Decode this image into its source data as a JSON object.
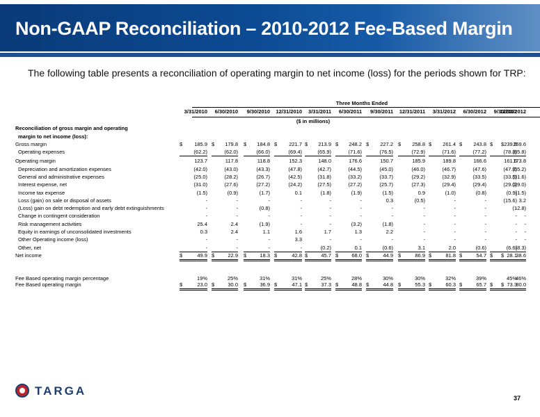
{
  "title": "Non-GAAP Reconciliation – 2010-2012 Fee-Based Margin",
  "subtitle": "The following table presents a reconciliation of operating margin to net income (loss) for the periods shown for TRP:",
  "table": {
    "group_header": "Three Months Ended",
    "units": "($ in millions)",
    "columns": [
      "3/31/2010",
      "6/30/2010",
      "9/30/2010",
      "12/31/2010",
      "3/31/2011",
      "6/30/2011",
      "9/30/2011",
      "12/31/2011",
      "3/31/2012",
      "6/30/2012",
      "9/30/2012",
      "12/31/2012"
    ],
    "section_heading_1": "Reconciliation of gross margin and operating",
    "section_heading_2": "margin to net income (loss):",
    "rows": [
      {
        "label": "Gross margin",
        "values": [
          "185.9",
          "179.8",
          "184.8",
          "221.7",
          "213.9",
          "248.2",
          "227.2",
          "258.8",
          "261.4",
          "243.8",
          "239.9",
          "259.6"
        ],
        "dollar": true
      },
      {
        "label": "Operating expenses",
        "values": [
          "(62.2)",
          "(62.0)",
          "(66.0)",
          "(69.4)",
          "(65.9)",
          "(71.6)",
          "(76.5)",
          "(72.9)",
          "(71.6)",
          "(77.2)",
          "(78.3)",
          "(85.8)"
        ],
        "indent": true,
        "underline": true
      },
      {
        "label": "Operating margin",
        "values": [
          "123.7",
          "117.8",
          "118.8",
          "152.3",
          "148.0",
          "176.6",
          "150.7",
          "185.9",
          "189.8",
          "166.6",
          "161.6",
          "173.8"
        ]
      },
      {
        "label": "Depreciation and amortization expenses",
        "values": [
          "(42.0)",
          "(43.0)",
          "(43.3)",
          "(47.8)",
          "(42.7)",
          "(44.5)",
          "(45.0)",
          "(46.0)",
          "(46.7)",
          "(47.6)",
          "(47.9)",
          "(55.2)"
        ],
        "indent": true
      },
      {
        "label": "General and administrative expenses",
        "values": [
          "(25.0)",
          "(28.2)",
          "(26.7)",
          "(42.5)",
          "(31.8)",
          "(33.2)",
          "(33.7)",
          "(29.2)",
          "(32.9)",
          "(33.5)",
          "(33.5)",
          "(31.6)"
        ],
        "indent": true
      },
      {
        "label": "Interest expense, net",
        "values": [
          "(31.0)",
          "(27.6)",
          "(27.2)",
          "(24.2)",
          "(27.5)",
          "(27.2)",
          "(25.7)",
          "(27.3)",
          "(29.4)",
          "(29.4)",
          "(29.0)",
          "(29.0)"
        ],
        "indent": true
      },
      {
        "label": "Income tax expense",
        "values": [
          "(1.5)",
          "(0.9)",
          "(1.7)",
          "0.1",
          "(1.8)",
          "(1.9)",
          "(1.5)",
          "0.9",
          "(1.0)",
          "(0.8)",
          "(0.9)",
          "(1.5)"
        ],
        "indent": true
      },
      {
        "label": "Loss (gain) on sale or disposal of assets",
        "values": [
          "-",
          "-",
          "-",
          "-",
          "-",
          "-",
          "0.3",
          "(0.5)",
          "-",
          "-",
          "(15.6)",
          "3.2"
        ],
        "indent": true
      },
      {
        "label": "(Loss) gain on debt redemption and early debt extinguishments",
        "values": [
          "-",
          "-",
          "(0.8)",
          "-",
          "-",
          "-",
          "-",
          "-",
          "-",
          "-",
          "-",
          "(12.8)"
        ],
        "indent": true
      },
      {
        "label": "Change in contingent consideration",
        "values": [
          "-",
          "-",
          "-",
          "-",
          "-",
          "-",
          "-",
          "-",
          "-",
          "-",
          "-",
          "-"
        ],
        "indent": true
      },
      {
        "label": "Risk management activities",
        "values": [
          "25.4",
          "2.4",
          "(1.9)",
          "-",
          "-",
          "(3.2)",
          "(1.8)",
          "-",
          "-",
          "-",
          "-",
          "-"
        ],
        "indent": true
      },
      {
        "label": "Equity in earnings of unconsolidated investments",
        "values": [
          "0.3",
          "2.4",
          "1.1",
          "1.6",
          "1.7",
          "1.3",
          "2.2",
          "-",
          "-",
          "-",
          "-",
          "-"
        ],
        "indent": true
      },
      {
        "label": "Other Operating income (loss)",
        "values": [
          "-",
          "-",
          "-",
          "3.3",
          "-",
          "-",
          "-",
          "-",
          "-",
          "-",
          "-",
          "-"
        ],
        "indent": true
      },
      {
        "label": "Other, net",
        "values": [
          "-",
          "-",
          "-",
          "-",
          "(0.2)",
          "0.1",
          "(0.6)",
          "3.1",
          "2.0",
          "(0.6)",
          "(6.6)",
          "(8.3)"
        ],
        "indent": true,
        "underline": true
      },
      {
        "label": "Net income",
        "values": [
          "49.9",
          "22.9",
          "18.3",
          "42.8",
          "45.7",
          "68.0",
          "44.9",
          "86.9",
          "81.8",
          "54.7",
          "28.1",
          "38.6"
        ],
        "dollar": true,
        "doubleline": true
      }
    ],
    "fee_pct": {
      "label": "Fee Based operating margin percentage",
      "values": [
        "19%",
        "25%",
        "31%",
        "31%",
        "25%",
        "28%",
        "30%",
        "30%",
        "32%",
        "39%",
        "45%",
        "46%"
      ]
    },
    "fee_margin": {
      "label": "Fee Based operating margin",
      "values": [
        "23.0",
        "30.0",
        "36.9",
        "47.1",
        "37.3",
        "48.8",
        "44.8",
        "55.3",
        "60.3",
        "65.7",
        "73.3",
        "80.0"
      ]
    },
    "currency_symbol": "$"
  },
  "logo_text": "TARGA",
  "page_number": "37",
  "brand_color": "#0c4a92"
}
